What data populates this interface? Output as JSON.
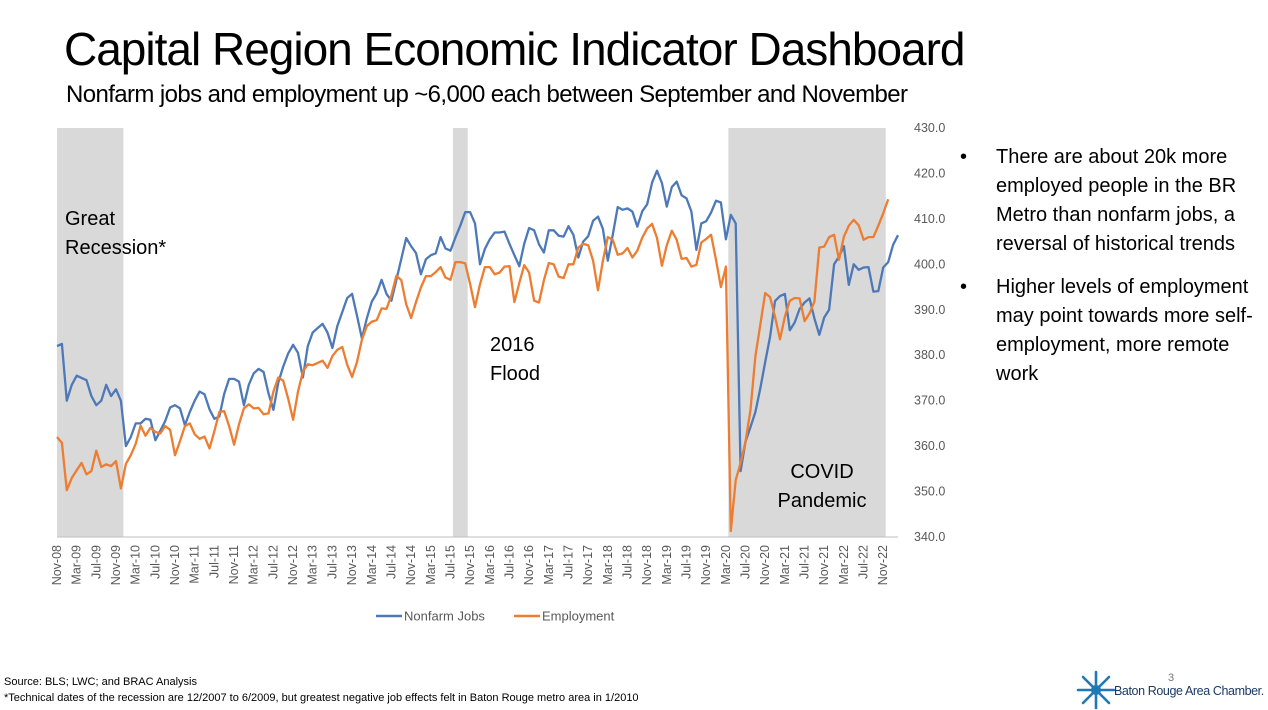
{
  "title": "Capital Region Economic Indicator Dashboard",
  "subtitle": "Nonfarm jobs and employment up ~6,000 each between September and November",
  "bullets": [
    "There are about 20k more employed people in the BR Metro than nonfarm jobs, a reversal of historical trends",
    "Higher levels of employment may point towards more self-employment, more remote work"
  ],
  "bullet_symbol": "•",
  "source": "Source: BLS; LWC; and BRAC Analysis",
  "footnote": "*Technical dates of the recession are 12/2007 to 6/2009, but greatest negative job effects felt in Baton Rouge metro area in 1/2010",
  "page_number": "3",
  "logo": {
    "text": "Baton Rouge Area Chamber.",
    "icon": "starburst-logo-icon",
    "color": "#1f4e8c"
  },
  "chart_data": {
    "type": "line",
    "x_start": "2008-11",
    "x_step_months": 1,
    "x_tick_labels": [
      "Nov-08",
      "Mar-09",
      "Jul-09",
      "Nov-09",
      "Mar-10",
      "Jul-10",
      "Nov-10",
      "Mar-11",
      "Jul-11",
      "Nov-11",
      "Mar-12",
      "Jul-12",
      "Nov-12",
      "Mar-13",
      "Jul-13",
      "Nov-13",
      "Mar-14",
      "Jul-14",
      "Nov-14",
      "Mar-15",
      "Jul-15",
      "Nov-15",
      "Mar-16",
      "Jul-16",
      "Nov-16",
      "Mar-17",
      "Jul-17",
      "Nov-17",
      "Mar-18",
      "Jul-18",
      "Nov-18",
      "Mar-19",
      "Jul-19",
      "Nov-19",
      "Mar-20",
      "Jul-20",
      "Nov-20",
      "Mar-21",
      "Jul-21",
      "Nov-21",
      "Mar-22",
      "Jul-22",
      "Nov-22"
    ],
    "ylim": [
      340,
      430
    ],
    "y_ticks": [
      "340.0",
      "350.0",
      "360.0",
      "370.0",
      "380.0",
      "390.0",
      "400.0",
      "410.0",
      "420.0",
      "430.0"
    ],
    "y_axis_position": "right",
    "grid": false,
    "legend_position": "bottom",
    "shaded_periods": [
      {
        "label": "Great Recession*",
        "start": "2008-11",
        "end": "2009-12"
      },
      {
        "label": "2016 Flood",
        "start": "2015-08",
        "end": "2015-10"
      },
      {
        "label": "COVID Pandemic",
        "start": "2020-04",
        "end": "2022-11"
      }
    ],
    "shade_color": "#d9d9d9",
    "series": [
      {
        "name": "Nonfarm Jobs",
        "color": "#4e79b8",
        "values": [
          382,
          382.5,
          370,
          373.5,
          375.5,
          375,
          374.5,
          371,
          369,
          370,
          373.5,
          371,
          372.5,
          370,
          360,
          362,
          365,
          365,
          366,
          365.8,
          361.3,
          363.4,
          365.5,
          368.5,
          369,
          368.3,
          364.6,
          367.5,
          370,
          372,
          371.4,
          368.1,
          366,
          366.5,
          371.5,
          374.8,
          374.8,
          374.2,
          369,
          373.5,
          376,
          377,
          376.3,
          371.6,
          368,
          374,
          377.5,
          380.4,
          382.3,
          380.5,
          375.1,
          382,
          385,
          386,
          386.9,
          385,
          381.6,
          386.4,
          389.5,
          392.6,
          393.5,
          388.7,
          383.7,
          388.1,
          391.8,
          393.6,
          396.6,
          393.5,
          392,
          396.6,
          401.2,
          405.8,
          404,
          402.5,
          397.8,
          401.1,
          402,
          402.4,
          406,
          403.5,
          403,
          405.9,
          408.5,
          411.5,
          411.5,
          409,
          400,
          403.4,
          405.5,
          407,
          407,
          407.2,
          404.5,
          402,
          399.6,
          404.5,
          408,
          407.5,
          404.4,
          402.6,
          407.5,
          407.5,
          406.3,
          406.1,
          408.4,
          406.5,
          401.5,
          405,
          406.2,
          409.6,
          410.5,
          407.8,
          400.8,
          406.4,
          412.6,
          412,
          412.3,
          411.6,
          408.3,
          411.7,
          413.2,
          418,
          420.6,
          417.9,
          412.7,
          417,
          418.2,
          415.2,
          414.5,
          411.6,
          403.2,
          409,
          409.5,
          411.4,
          414,
          413.6,
          405.5,
          410.9,
          409,
          354.5,
          361,
          364.2,
          367.5,
          372.7,
          378.5,
          384.1,
          391.9,
          393,
          393.5,
          385.5,
          387.2,
          390.2,
          391.6,
          392.5,
          388.1,
          384.5,
          388.3,
          390,
          400,
          401.7,
          404,
          395.5,
          400,
          398.8,
          399.3,
          399.4,
          394,
          394.1,
          399.3,
          400.5,
          404.3,
          406.4
        ]
      },
      {
        "name": "Employment",
        "color": "#ed7d31",
        "values": [
          362,
          360.7,
          350.3,
          353,
          354.7,
          356.3,
          353.8,
          354.5,
          359,
          355.4,
          356,
          355.6,
          356.7,
          350.7,
          356.1,
          358,
          360.5,
          364.5,
          362.3,
          364,
          363.1,
          362.8,
          364.4,
          363.6,
          358,
          361.1,
          364.4,
          365,
          362.6,
          361.6,
          362.1,
          359.5,
          363.3,
          367.5,
          367.7,
          364.4,
          360.3,
          364.8,
          368.3,
          369.2,
          368.3,
          368.4,
          367,
          367.2,
          372,
          375.1,
          374.4,
          370.4,
          365.8,
          372,
          376.4,
          378,
          377.8,
          378.3,
          378.8,
          377.2,
          379.8,
          381.2,
          381.8,
          377.9,
          375.2,
          378.5,
          383.4,
          386.4,
          387.4,
          387.7,
          390.3,
          390.2,
          393.2,
          397.5,
          396.5,
          391.2,
          388.2,
          391.7,
          394.9,
          397.4,
          397.4,
          398.3,
          399.4,
          397.1,
          396.6,
          400.5,
          400.5,
          400.2,
          395.7,
          390.6,
          395.6,
          399.4,
          399.4,
          397.8,
          398.2,
          399.5,
          399.6,
          391.7,
          395.9,
          399.8,
          398.2,
          392,
          391.6,
          396.5,
          400.3,
          400,
          397.3,
          397,
          400,
          400,
          403.7,
          404.5,
          404.2,
          400.8,
          394.3,
          400.8,
          406,
          405.4,
          402.1,
          402.4,
          403.6,
          401.5,
          403,
          405.9,
          407.9,
          408.9,
          405.8,
          399.7,
          404.2,
          407.4,
          405.4,
          401.2,
          401.4,
          399.5,
          399.9,
          404.8,
          405.6,
          406.5,
          401,
          395,
          399.5,
          341.3,
          352.5,
          356.3,
          361,
          368,
          379.8,
          386.7,
          393.7,
          392.8,
          388.5,
          383.5,
          388.5,
          392,
          392.6,
          392.5,
          387.5,
          389.2,
          391.8,
          403.7,
          403.9,
          406,
          406.5,
          401,
          406.1,
          408.5,
          409.8,
          408.6,
          405.4,
          406,
          406,
          408.5,
          411.2,
          414.3
        ]
      }
    ]
  }
}
